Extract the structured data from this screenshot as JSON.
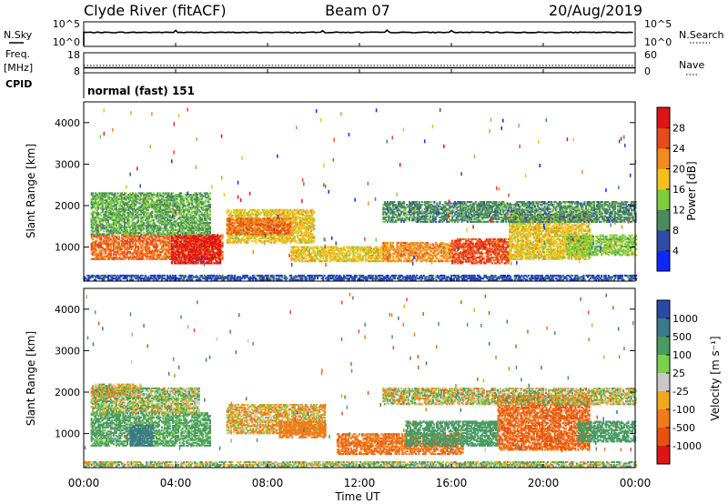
{
  "header": {
    "station": "Clyde River (fitACF)",
    "beam": "Beam 07",
    "date": "20/Aug/2019"
  },
  "panels": {
    "nsky": {
      "left_label": "N.Sky",
      "left_ticks": [
        "10^5",
        "10^0"
      ],
      "right_label": "N.Search",
      "right_ticks": [
        "10^5",
        "10^0"
      ]
    },
    "freq": {
      "left_label_1": "Freq.",
      "left_label_2": "[MHz]",
      "left_ticks": [
        "18",
        "8"
      ],
      "right_label": "Nave",
      "right_ticks": [
        "60",
        "0"
      ]
    },
    "cpid": {
      "label": "CPID",
      "value": "normal (fast) 151"
    }
  },
  "xaxis": {
    "title": "Time UT",
    "ticks": [
      "00:00",
      "04:00",
      "08:00",
      "12:00",
      "16:00",
      "20:00",
      "00:00"
    ]
  },
  "yaxis": {
    "title": "Slant Range [km]",
    "ticks": [
      "1000",
      "2000",
      "3000",
      "4000"
    ]
  },
  "colorbars": {
    "power": {
      "title": "Power [dB]",
      "labels": [
        "4",
        "8",
        "12",
        "16",
        "20",
        "24",
        "28"
      ],
      "colors": [
        "#0a28ff",
        "#2d4ca8",
        "#4a8a60",
        "#7ccc3c",
        "#f2c21a",
        "#f28a1e",
        "#e84a1a",
        "#e01414"
      ]
    },
    "velocity": {
      "title": "Velocity [m s⁻¹]",
      "labels": [
        "1000",
        "500",
        "100",
        "25",
        "-25",
        "-100",
        "-500",
        "-1000"
      ],
      "colors": [
        "#2a4aa8",
        "#3a7a8a",
        "#4a9a64",
        "#7cd04a",
        "#c8c8c8",
        "#f2a81a",
        "#f07a1a",
        "#e85010",
        "#e01414"
      ]
    }
  },
  "chart_data": [
    {
      "type": "line",
      "title": "N.Sky / N.Search",
      "x_range_hours": [
        0,
        24
      ],
      "ylim_log": [
        0,
        5
      ],
      "series": [
        {
          "name": "N.Sky",
          "x": [
            0,
            2,
            4,
            6,
            8,
            10,
            12,
            14,
            16,
            18,
            20,
            22,
            24
          ],
          "values": [
            2.8,
            2.9,
            2.85,
            2.9,
            2.85,
            2.9,
            2.85,
            2.9,
            2.85,
            2.9,
            2.85,
            2.9,
            2.85
          ]
        }
      ]
    },
    {
      "type": "line",
      "title": "Freq / Nave",
      "x_range_hours": [
        0,
        24
      ],
      "series": [
        {
          "name": "Freq.",
          "x": [
            0,
            24
          ],
          "values": [
            10.5,
            10.5
          ]
        },
        {
          "name": "Nave",
          "x": [
            0,
            24
          ],
          "values": [
            22,
            22
          ]
        }
      ]
    },
    {
      "type": "heatmap",
      "title": "Power",
      "xlabel": "Time UT",
      "ylabel": "Slant Range [km]",
      "x_range_hours": [
        0,
        24
      ],
      "ylim": [
        180,
        4500
      ],
      "zlabel": "Power [dB]",
      "zrange": [
        0,
        32
      ],
      "blobs": [
        {
          "t0": 0.3,
          "t1": 6.0,
          "r0": 700,
          "r1": 1300,
          "z": 24
        },
        {
          "t0": 3.8,
          "t1": 5.9,
          "r0": 600,
          "r1": 1300,
          "z": 30
        },
        {
          "t0": 0.3,
          "t1": 5.5,
          "r0": 1300,
          "r1": 2300,
          "z": 12
        },
        {
          "t0": 6.2,
          "t1": 10.0,
          "r0": 1100,
          "r1": 1900,
          "z": 18
        },
        {
          "t0": 6.2,
          "t1": 9.0,
          "r0": 1300,
          "r1": 1700,
          "z": 24
        },
        {
          "t0": 9.0,
          "t1": 13.0,
          "r0": 650,
          "r1": 1000,
          "z": 18
        },
        {
          "t0": 13.0,
          "t1": 16.0,
          "r0": 650,
          "r1": 1100,
          "z": 22
        },
        {
          "t0": 16.0,
          "t1": 18.5,
          "r0": 600,
          "r1": 1200,
          "z": 26
        },
        {
          "t0": 18.5,
          "t1": 22.0,
          "r0": 700,
          "r1": 1800,
          "z": 18
        },
        {
          "t0": 13.0,
          "t1": 24.0,
          "r0": 1600,
          "r1": 2100,
          "z": 10
        },
        {
          "t0": 21.0,
          "t1": 24.0,
          "r0": 800,
          "r1": 1300,
          "z": 14
        },
        {
          "t0": 0.0,
          "t1": 24.0,
          "r0": 200,
          "r1": 320,
          "z": 6
        }
      ]
    },
    {
      "type": "heatmap",
      "title": "Velocity",
      "xlabel": "Time UT",
      "ylabel": "Slant Range [km]",
      "x_range_hours": [
        0,
        24
      ],
      "ylim": [
        180,
        4500
      ],
      "zlabel": "Velocity [m s⁻¹]",
      "zrange": [
        -1000,
        1000
      ],
      "blobs": [
        {
          "t0": 0.3,
          "t1": 5.5,
          "r0": 700,
          "r1": 1500,
          "z": 200
        },
        {
          "t0": 2.0,
          "t1": 3.0,
          "r0": 700,
          "r1": 1200,
          "z": 800
        },
        {
          "t0": 0.3,
          "t1": 5.0,
          "r0": 1500,
          "r1": 2100,
          "z": 60
        },
        {
          "t0": 0.3,
          "t1": 2.5,
          "r0": 1900,
          "r1": 2200,
          "z": 0
        },
        {
          "t0": 6.2,
          "t1": 10.5,
          "r0": 1000,
          "r1": 1700,
          "z": -80
        },
        {
          "t0": 8.5,
          "t1": 10.5,
          "r0": 900,
          "r1": 1300,
          "z": -300
        },
        {
          "t0": 11.0,
          "t1": 16.5,
          "r0": 500,
          "r1": 1000,
          "z": -400
        },
        {
          "t0": 14.0,
          "t1": 18.0,
          "r0": 700,
          "r1": 1300,
          "z": 300
        },
        {
          "t0": 18.0,
          "t1": 22.0,
          "r0": 600,
          "r1": 1900,
          "z": -500
        },
        {
          "t0": 13.0,
          "t1": 24.0,
          "r0": 1700,
          "r1": 2100,
          "z": 0
        },
        {
          "t0": 21.5,
          "t1": 24.0,
          "r0": 800,
          "r1": 1300,
          "z": 300
        },
        {
          "t0": 0.0,
          "t1": 24.0,
          "r0": 200,
          "r1": 320,
          "z": 50
        }
      ]
    }
  ]
}
